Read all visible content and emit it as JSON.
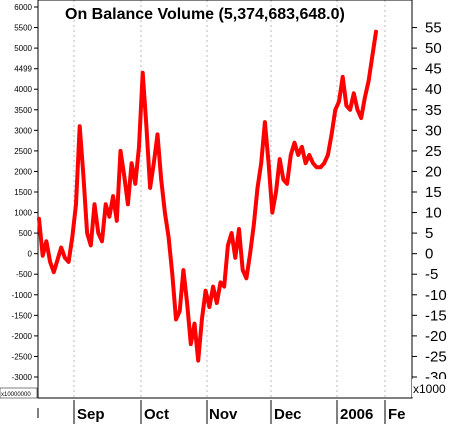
{
  "chart_data": {
    "type": "line",
    "title": "On Balance Volume (5,374,683,648.0)",
    "left_axis": {
      "ticks": [
        6000,
        5500,
        5000,
        4499,
        4000,
        3500,
        3000,
        2500,
        2000,
        1500,
        1000,
        500,
        0,
        -500,
        -1000,
        -1500,
        -2000,
        -2500,
        -3000
      ],
      "range": [
        -3000,
        6000
      ]
    },
    "right_axis": {
      "ticks": [
        55,
        50,
        45,
        40,
        35,
        30,
        25,
        20,
        15,
        10,
        5,
        0,
        -5,
        -10,
        -15,
        -20,
        -25,
        -30
      ],
      "unit": "x1000",
      "range": [
        -30,
        60
      ]
    },
    "bottom_left_label": "x10000000",
    "x_labels": [
      "Sep",
      "Oct",
      "Nov",
      "Dec",
      "2006",
      "Fe"
    ],
    "grid": "vertical dashed at month starts",
    "series": [
      {
        "color": "#ff0000",
        "x_index": [
          0,
          1,
          2,
          3,
          4,
          5,
          6,
          7,
          8,
          9,
          10,
          11,
          12,
          13,
          14,
          15,
          16,
          17,
          18,
          19,
          20,
          21,
          22,
          23,
          24,
          25,
          26,
          27,
          28,
          29,
          30,
          31,
          32,
          33,
          34,
          35,
          36,
          37,
          38,
          39,
          40,
          41,
          42,
          43,
          44,
          45,
          46,
          47,
          48,
          49,
          50,
          51,
          52,
          53,
          54,
          55,
          56,
          57,
          58,
          59,
          60,
          61,
          62,
          63,
          64,
          65,
          66,
          67,
          68,
          69,
          70,
          71,
          72,
          73,
          74,
          75,
          76,
          77,
          78,
          79,
          80,
          81,
          82,
          83,
          84,
          85,
          86,
          87,
          88,
          89,
          90,
          91
        ],
        "values": [
          850,
          -50,
          300,
          -200,
          -450,
          -150,
          150,
          -100,
          -200,
          400,
          1200,
          3100,
          1900,
          500,
          200,
          1200,
          500,
          300,
          1200,
          900,
          1400,
          800,
          2500,
          1900,
          1200,
          2200,
          1700,
          2600,
          4400,
          3100,
          1600,
          2200,
          2900,
          1800,
          1000,
          400,
          -500,
          -1600,
          -1400,
          -400,
          -1200,
          -2200,
          -1700,
          -2600,
          -1600,
          -900,
          -1300,
          -800,
          -1200,
          -700,
          -800,
          200,
          500,
          -100,
          600,
          -400,
          -600,
          0,
          700,
          1600,
          2200,
          3200,
          2200,
          1000,
          1500,
          2300,
          1800,
          1700,
          2400,
          2700,
          2400,
          2600,
          2200,
          2400,
          2200,
          2100,
          2100,
          2200,
          2400,
          2900,
          3500,
          3700,
          4300,
          3600,
          3500,
          3900,
          3500,
          3300,
          3800,
          4200,
          4800,
          5400
        ]
      }
    ]
  }
}
